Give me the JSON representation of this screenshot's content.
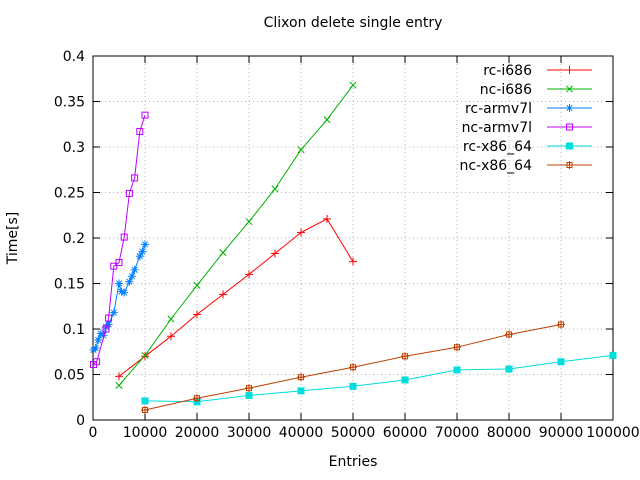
{
  "title": "Clixon delete single entry",
  "chart_data": {
    "type": "line",
    "title": "Clixon delete single entry",
    "xlabel": "Entries",
    "ylabel": "Time[s]",
    "xlim": [
      0,
      100000
    ],
    "ylim": [
      0,
      0.4
    ],
    "xtick_step": 10000,
    "ytick_step": 0.05,
    "grid": true,
    "legend_position": "top-right-inside",
    "text_color": "#000000",
    "border_color": "#000000",
    "grid_color": "#b4b4b4",
    "series": [
      {
        "name": "rc-i686",
        "color": "#ff0000",
        "marker": "plus",
        "points": [
          [
            5000,
            0.048
          ],
          [
            10000,
            0.07
          ],
          [
            15000,
            0.092
          ],
          [
            20000,
            0.116
          ],
          [
            25000,
            0.138
          ],
          [
            30000,
            0.16
          ],
          [
            35000,
            0.183
          ],
          [
            40000,
            0.206
          ],
          [
            45000,
            0.221
          ],
          [
            50000,
            0.174
          ]
        ]
      },
      {
        "name": "nc-i686",
        "color": "#00b000",
        "marker": "cross",
        "points": [
          [
            5000,
            0.038
          ],
          [
            10000,
            0.071
          ],
          [
            15000,
            0.111
          ],
          [
            20000,
            0.148
          ],
          [
            25000,
            0.184
          ],
          [
            30000,
            0.218
          ],
          [
            35000,
            0.254
          ],
          [
            40000,
            0.297
          ],
          [
            45000,
            0.33
          ],
          [
            50000,
            0.368
          ]
        ]
      },
      {
        "name": "rc-armv7l",
        "color": "#0080ff",
        "marker": "asterisk",
        "points": [
          [
            100,
            0.077
          ],
          [
            500,
            0.079
          ],
          [
            1000,
            0.088
          ],
          [
            1500,
            0.095
          ],
          [
            2000,
            0.093
          ],
          [
            2500,
            0.102
          ],
          [
            3000,
            0.105
          ],
          [
            4000,
            0.118
          ],
          [
            5000,
            0.15
          ],
          [
            5500,
            0.141
          ],
          [
            6000,
            0.14
          ],
          [
            7000,
            0.152
          ],
          [
            7500,
            0.158
          ],
          [
            8000,
            0.165
          ],
          [
            9000,
            0.18
          ],
          [
            9500,
            0.185
          ],
          [
            10000,
            0.193
          ]
        ]
      },
      {
        "name": "nc-armv7l",
        "color": "#bf00ff",
        "marker": "open-square",
        "points": [
          [
            100,
            0.061
          ],
          [
            700,
            0.064
          ],
          [
            2500,
            0.1
          ],
          [
            3000,
            0.112
          ],
          [
            4000,
            0.169
          ],
          [
            5000,
            0.173
          ],
          [
            6000,
            0.201
          ],
          [
            7000,
            0.249
          ],
          [
            8000,
            0.266
          ],
          [
            9000,
            0.317
          ],
          [
            10000,
            0.335
          ]
        ]
      },
      {
        "name": "rc-x86_64",
        "color": "#00dddd",
        "marker": "filled-square",
        "points": [
          [
            10000,
            0.021
          ],
          [
            20000,
            0.02
          ],
          [
            30000,
            0.027
          ],
          [
            40000,
            0.032
          ],
          [
            50000,
            0.037
          ],
          [
            60000,
            0.044
          ],
          [
            70000,
            0.055
          ],
          [
            80000,
            0.056
          ],
          [
            90000,
            0.064
          ],
          [
            100000,
            0.071
          ]
        ]
      },
      {
        "name": "nc-x86_64",
        "color": "#c04000",
        "marker": "boxed-plus",
        "points": [
          [
            10000,
            0.011
          ],
          [
            20000,
            0.024
          ],
          [
            30000,
            0.035
          ],
          [
            40000,
            0.047
          ],
          [
            50000,
            0.058
          ],
          [
            60000,
            0.07
          ],
          [
            70000,
            0.08
          ],
          [
            80000,
            0.094
          ],
          [
            90000,
            0.105
          ]
        ]
      }
    ]
  }
}
